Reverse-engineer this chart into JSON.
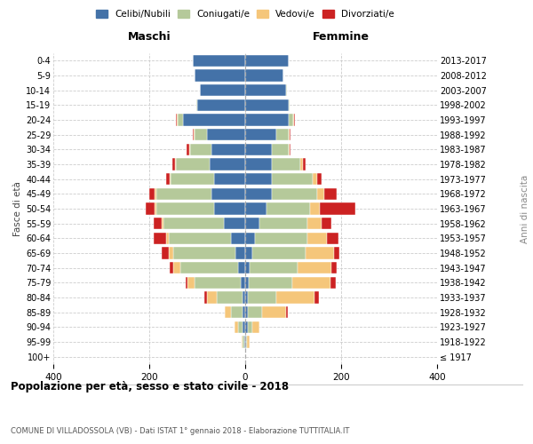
{
  "age_groups": [
    "100+",
    "95-99",
    "90-94",
    "85-89",
    "80-84",
    "75-79",
    "70-74",
    "65-69",
    "60-64",
    "55-59",
    "50-54",
    "45-49",
    "40-44",
    "35-39",
    "30-34",
    "25-29",
    "20-24",
    "15-19",
    "10-14",
    "5-9",
    "0-4"
  ],
  "birth_years": [
    "≤ 1917",
    "1918-1922",
    "1923-1927",
    "1928-1932",
    "1933-1937",
    "1938-1942",
    "1943-1947",
    "1948-1952",
    "1953-1957",
    "1958-1962",
    "1963-1967",
    "1968-1972",
    "1973-1977",
    "1978-1982",
    "1983-1987",
    "1988-1992",
    "1993-1997",
    "1998-2002",
    "2003-2007",
    "2008-2012",
    "2013-2017"
  ],
  "males": {
    "celibi": [
      0,
      2,
      5,
      5,
      5,
      10,
      15,
      20,
      30,
      45,
      65,
      70,
      65,
      75,
      70,
      80,
      130,
      100,
      95,
      105,
      110
    ],
    "coniugati": [
      0,
      3,
      10,
      25,
      55,
      95,
      120,
      130,
      130,
      125,
      120,
      115,
      90,
      70,
      45,
      25,
      10,
      2,
      0,
      0,
      0
    ],
    "vedovi": [
      0,
      2,
      8,
      12,
      20,
      15,
      15,
      10,
      5,
      5,
      3,
      3,
      2,
      2,
      2,
      2,
      2,
      0,
      0,
      0,
      0
    ],
    "divorziati": [
      0,
      0,
      0,
      0,
      5,
      5,
      8,
      15,
      25,
      15,
      20,
      12,
      8,
      5,
      5,
      2,
      2,
      0,
      0,
      0,
      0
    ]
  },
  "females": {
    "nubili": [
      0,
      2,
      5,
      5,
      5,
      8,
      10,
      15,
      20,
      30,
      45,
      55,
      55,
      55,
      55,
      65,
      90,
      90,
      85,
      80,
      90
    ],
    "coniugate": [
      0,
      2,
      10,
      30,
      60,
      90,
      100,
      110,
      110,
      100,
      90,
      95,
      85,
      60,
      35,
      25,
      10,
      2,
      2,
      0,
      0
    ],
    "vedove": [
      0,
      5,
      15,
      50,
      80,
      80,
      70,
      60,
      40,
      30,
      20,
      15,
      10,
      5,
      2,
      2,
      2,
      0,
      0,
      0,
      0
    ],
    "divorziate": [
      0,
      0,
      0,
      3,
      8,
      10,
      10,
      12,
      25,
      20,
      75,
      25,
      10,
      5,
      2,
      2,
      2,
      0,
      0,
      0,
      0
    ]
  },
  "colors": {
    "celibi": "#4472a8",
    "coniugati": "#b5c99a",
    "vedovi": "#f5c67a",
    "divorziati": "#cc2222"
  },
  "legend_labels": [
    "Celibi/Nubili",
    "Coniugati/e",
    "Vedovi/e",
    "Divorziati/e"
  ],
  "title": "Popolazione per età, sesso e stato civile - 2018",
  "subtitle": "COMUNE DI VILLADOSSOLA (VB) - Dati ISTAT 1° gennaio 2018 - Elaborazione TUTTITALIA.IT",
  "label_maschi": "Maschi",
  "label_femmine": "Femmine",
  "xlabel_left": "Fasce di età",
  "xlabel_right": "Anni di nascita",
  "xlim": 400,
  "bg_color": "#ffffff",
  "grid_color": "#cccccc",
  "bar_height": 0.8
}
